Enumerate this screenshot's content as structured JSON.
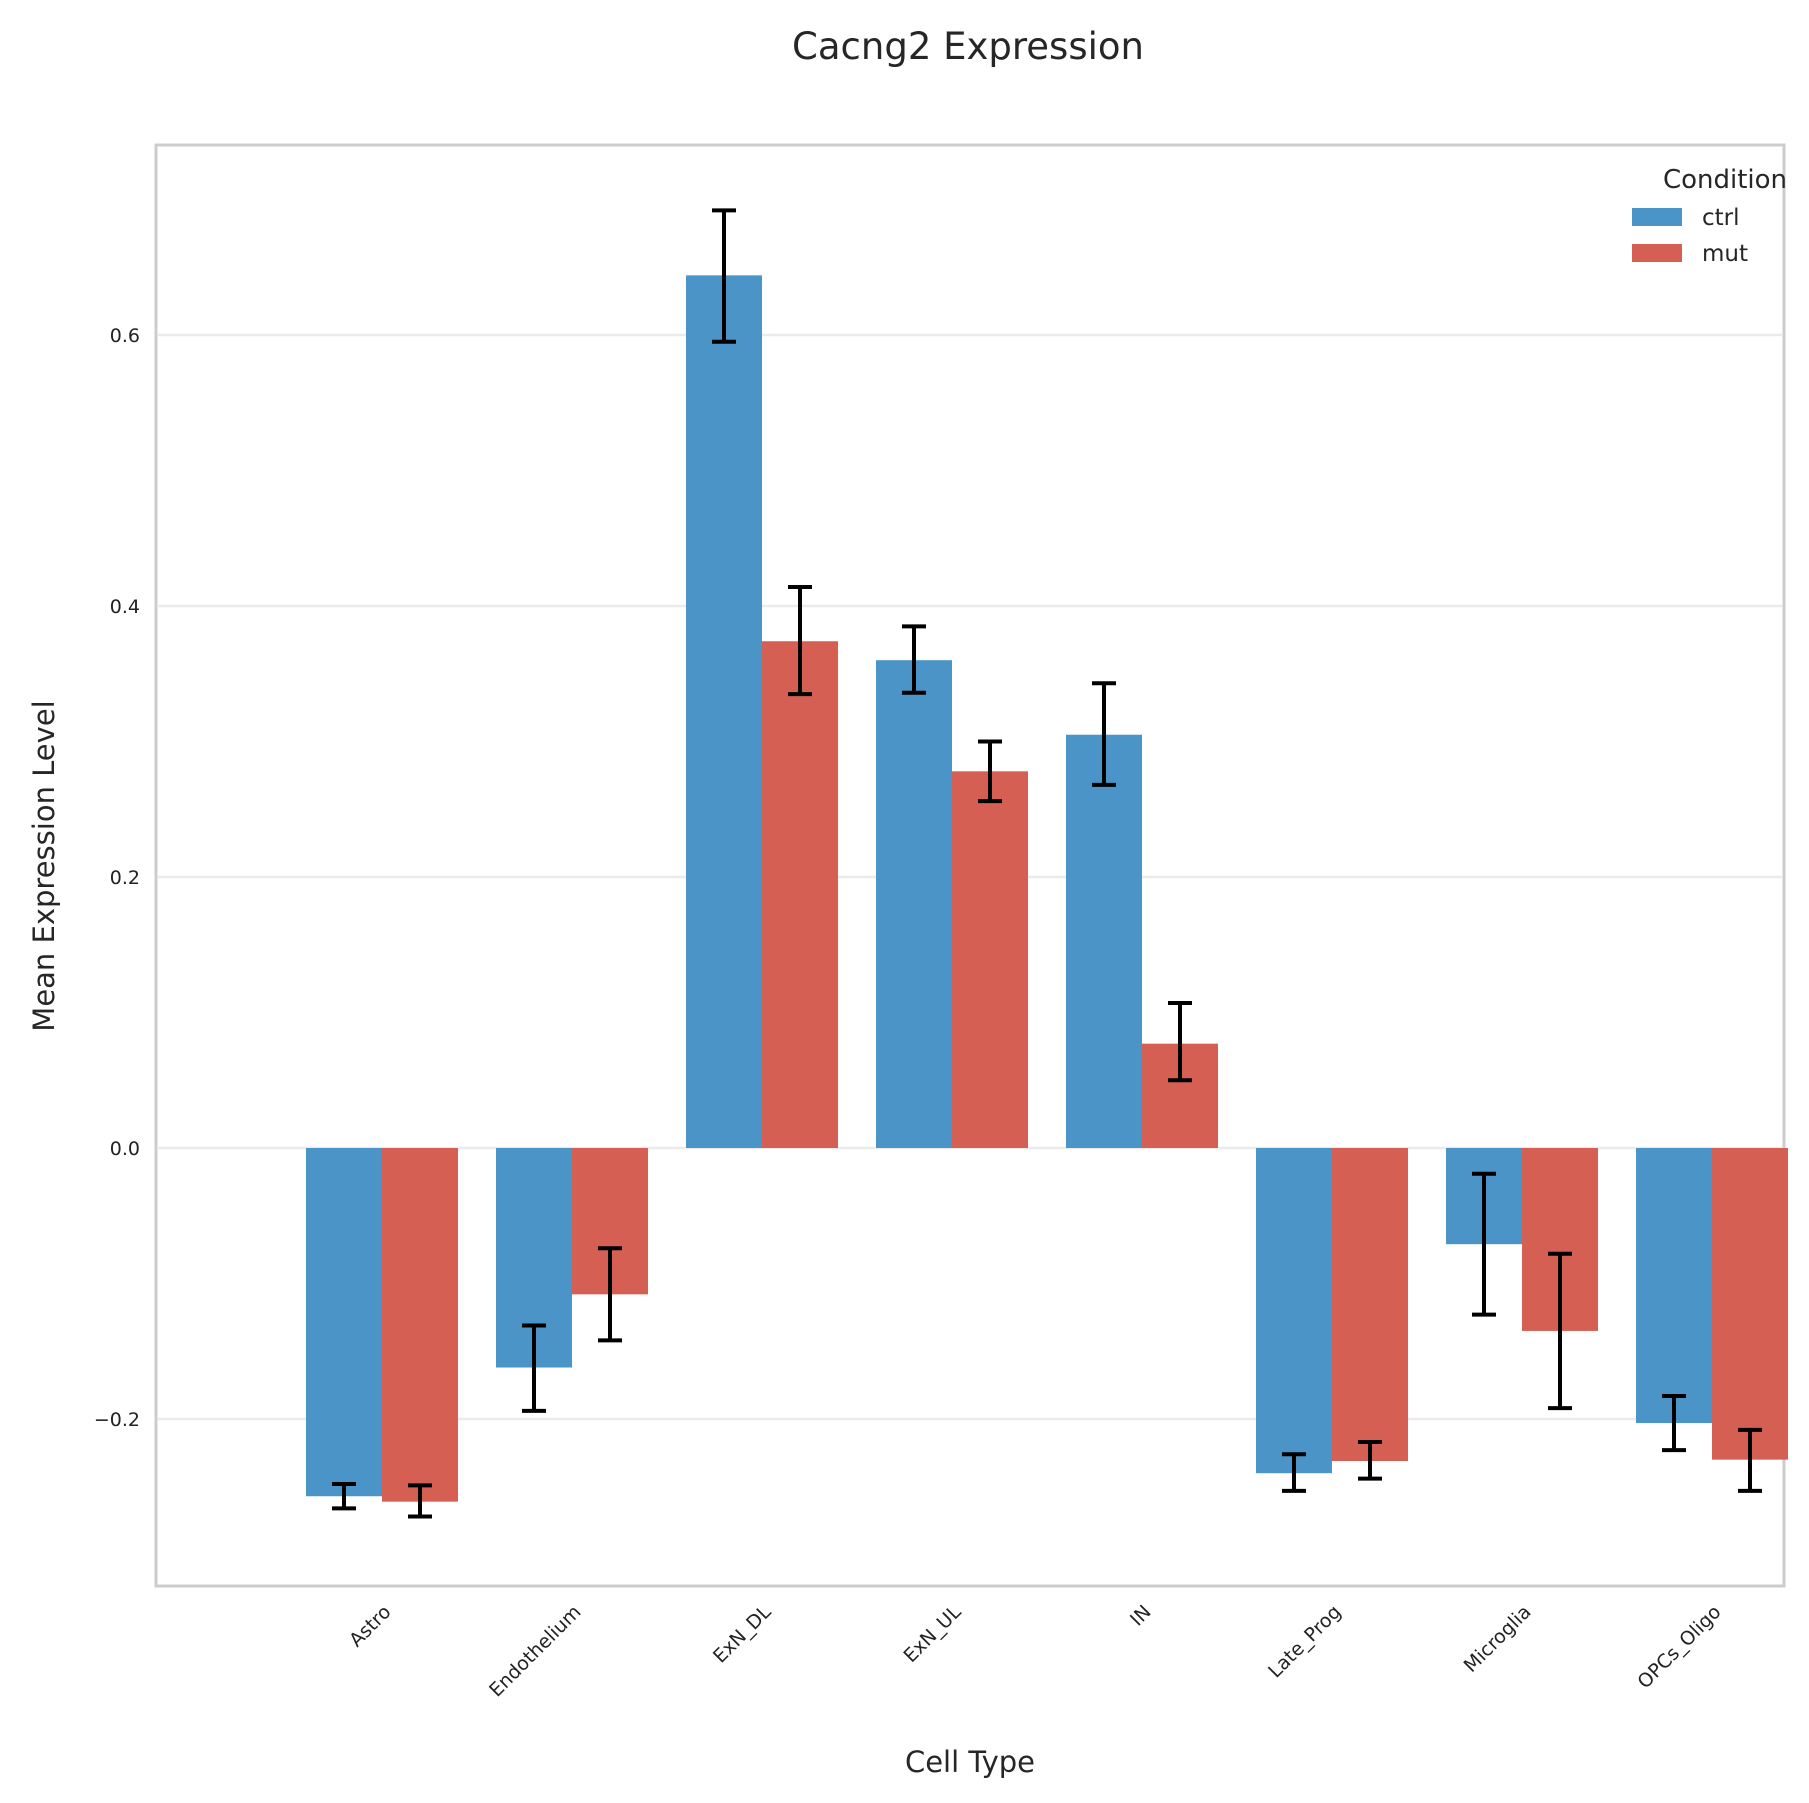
{
  "chart_data": {
    "type": "bar",
    "title": "Cacng2 Expression",
    "xlabel": "Cell Type",
    "ylabel": "Mean Expression Level",
    "categories": [
      "Astro",
      "Endothelium",
      "ExN_DL",
      "ExN_UL",
      "IN",
      "Late_Prog",
      "Microglia",
      "OPCs_Oligo"
    ],
    "yticks": [
      -0.2,
      0.0,
      0.2,
      0.4,
      0.6
    ],
    "ytick_labels": [
      "−0.2",
      "0.0",
      "0.2",
      "0.4",
      "0.6"
    ],
    "ylim": [
      -0.32,
      0.74
    ],
    "grid": "horizontal",
    "legend": {
      "title": "Condition",
      "placement": "top-right"
    },
    "series": [
      {
        "name": "ctrl",
        "color": "#4a94c7",
        "values": [
          -0.257,
          -0.162,
          0.644,
          0.36,
          0.305,
          -0.24,
          -0.071,
          -0.203
        ],
        "error_low": [
          -0.266,
          -0.194,
          0.595,
          0.336,
          0.268,
          -0.253,
          -0.123,
          -0.223
        ],
        "error_high": [
          -0.248,
          -0.131,
          0.692,
          0.385,
          0.343,
          -0.226,
          -0.019,
          -0.183
        ]
      },
      {
        "name": "mut",
        "color": "#d45f52",
        "values": [
          -0.261,
          -0.108,
          0.374,
          0.278,
          0.077,
          -0.231,
          -0.135,
          -0.23
        ],
        "error_low": [
          -0.272,
          -0.142,
          0.335,
          0.256,
          0.05,
          -0.244,
          -0.192,
          -0.253
        ],
        "error_high": [
          -0.249,
          -0.074,
          0.414,
          0.3,
          0.107,
          -0.217,
          -0.078,
          -0.208
        ]
      }
    ]
  }
}
